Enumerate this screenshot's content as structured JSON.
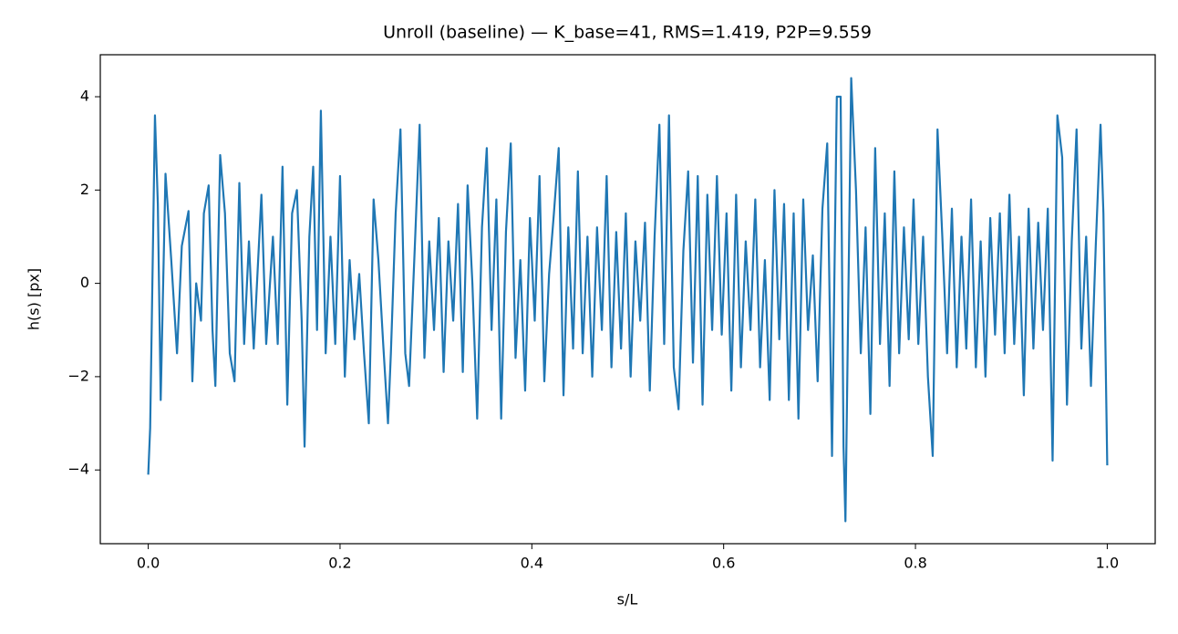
{
  "chart_data": {
    "type": "line",
    "title": "Unroll (baseline) — K_base=41, RMS=1.419, P2P=9.559",
    "x_label": "s/L",
    "y_label": "h(s) [px]",
    "xlim": [
      -0.05,
      1.05
    ],
    "ylim": [
      -5.58,
      4.9
    ],
    "xticks": [
      {
        "value": 0,
        "label": "0.0"
      },
      0.2,
      0.4,
      0.6,
      0.8,
      {
        "value": 1,
        "label": "1.0"
      }
    ],
    "yticks": [
      {
        "value": -4,
        "label": "−4"
      },
      {
        "value": -2,
        "label": "−2"
      },
      0,
      2,
      4
    ],
    "series": [
      {
        "color": "#1f77b4",
        "x": [
          0,
          0.002,
          0.007,
          0.01,
          0.013,
          0.018,
          0.024,
          0.03,
          0.035,
          0.042,
          0.046,
          0.05,
          0.055,
          0.058,
          0.063,
          0.067,
          0.07,
          0.075,
          0.08,
          0.085,
          0.09,
          0.095,
          0.1,
          0.105,
          0.11,
          0.118,
          0.123,
          0.13,
          0.135,
          0.14,
          0.145,
          0.15,
          0.155,
          0.16,
          0.163,
          0.168,
          0.172,
          0.176,
          0.18,
          0.185,
          0.19,
          0.195,
          0.2,
          0.205,
          0.21,
          0.215,
          0.22,
          0.225,
          0.23,
          0.235,
          0.24,
          0.245,
          0.25,
          0.253,
          0.258,
          0.263,
          0.268,
          0.272,
          0.278,
          0.283,
          0.288,
          0.293,
          0.298,
          0.303,
          0.308,
          0.313,
          0.318,
          0.323,
          0.328,
          0.333,
          0.338,
          0.343,
          0.348,
          0.353,
          0.358,
          0.363,
          0.368,
          0.373,
          0.378,
          0.383,
          0.388,
          0.393,
          0.398,
          0.403,
          0.408,
          0.413,
          0.418,
          0.423,
          0.428,
          0.433,
          0.438,
          0.443,
          0.448,
          0.453,
          0.458,
          0.463,
          0.468,
          0.473,
          0.478,
          0.483,
          0.488,
          0.493,
          0.498,
          0.503,
          0.508,
          0.513,
          0.518,
          0.523,
          0.528,
          0.533,
          0.538,
          0.543,
          0.548,
          0.553,
          0.558,
          0.563,
          0.568,
          0.573,
          0.578,
          0.583,
          0.588,
          0.593,
          0.598,
          0.603,
          0.608,
          0.613,
          0.618,
          0.623,
          0.628,
          0.633,
          0.638,
          0.643,
          0.648,
          0.653,
          0.658,
          0.663,
          0.668,
          0.673,
          0.678,
          0.683,
          0.688,
          0.693,
          0.698,
          0.703,
          0.708,
          0.713,
          0.718,
          0.722,
          0.725,
          0.727,
          0.733,
          0.738,
          0.743,
          0.748,
          0.753,
          0.758,
          0.763,
          0.768,
          0.773,
          0.778,
          0.783,
          0.788,
          0.793,
          0.798,
          0.803,
          0.808,
          0.813,
          0.818,
          0.823,
          0.828,
          0.833,
          0.838,
          0.843,
          0.848,
          0.853,
          0.858,
          0.863,
          0.868,
          0.873,
          0.878,
          0.883,
          0.888,
          0.893,
          0.898,
          0.903,
          0.908,
          0.913,
          0.918,
          0.923,
          0.928,
          0.933,
          0.938,
          0.943,
          0.948,
          0.953,
          0.958,
          0.963,
          0.968,
          0.973,
          0.978,
          0.983,
          0.988,
          0.993,
          0.996,
          1
        ],
        "values": [
          -4.1,
          -3.1,
          3.6,
          1.7,
          -2.5,
          2.35,
          0.5,
          -1.5,
          0.8,
          1.55,
          -2.1,
          0,
          -0.8,
          1.5,
          2.1,
          -1,
          -2.2,
          2.75,
          1.5,
          -1.5,
          -2.1,
          2.15,
          -1.3,
          0.9,
          -1.4,
          1.9,
          -1.3,
          1,
          -1.3,
          2.5,
          -2.6,
          1.5,
          2,
          -0.8,
          -3.5,
          1,
          2.5,
          -1,
          3.7,
          -1.5,
          1,
          -1.3,
          2.3,
          -2,
          0.5,
          -1.2,
          0.2,
          -1.5,
          -3,
          1.8,
          0.5,
          -1.3,
          -3,
          -1.5,
          1.5,
          3.3,
          -1.5,
          -2.2,
          0.8,
          3.4,
          -1.6,
          0.9,
          -1,
          1.4,
          -1.9,
          0.9,
          -0.8,
          1.7,
          -1.9,
          2.1,
          0,
          -2.9,
          1.2,
          2.9,
          -1,
          1.8,
          -2.9,
          1.1,
          3,
          -1.6,
          0.5,
          -2.3,
          1.4,
          -0.8,
          2.3,
          -2.1,
          0.2,
          1.5,
          2.9,
          -2.4,
          1.2,
          -1.4,
          2.4,
          -1.5,
          1,
          -2,
          1.2,
          -1,
          2.3,
          -1.8,
          1.1,
          -1.4,
          1.5,
          -2,
          0.9,
          -0.8,
          1.3,
          -2.3,
          1,
          3.4,
          -1.3,
          3.6,
          -1.8,
          -2.7,
          0.7,
          2.4,
          -1.7,
          2.3,
          -2.6,
          1.9,
          -1,
          2.3,
          -1.1,
          1.5,
          -2.3,
          1.9,
          -1.8,
          0.9,
          -1,
          1.8,
          -1.8,
          0.5,
          -2.5,
          2,
          -1.2,
          1.7,
          -2.5,
          1.5,
          -2.9,
          1.8,
          -1,
          0.6,
          -2.1,
          1.6,
          3,
          -3.7,
          4,
          4,
          -3.5,
          -5.1,
          4.4,
          2,
          -1.5,
          1.2,
          -2.8,
          2.9,
          -1.3,
          1.5,
          -2.2,
          2.4,
          -1.5,
          1.2,
          -1.2,
          1.8,
          -1.3,
          1,
          -2,
          -3.7,
          3.3,
          1,
          -1.5,
          1.6,
          -1.8,
          1,
          -1.4,
          1.8,
          -1.8,
          0.9,
          -2,
          1.4,
          -1.1,
          1.5,
          -1.5,
          1.9,
          -1.3,
          1,
          -2.4,
          1.6,
          -1.4,
          1.3,
          -1,
          1.6,
          -3.8,
          3.6,
          2.7,
          -2.6,
          0.9,
          3.3,
          -1.4,
          1,
          -2.2,
          0.8,
          3.4,
          1.5,
          -3.9
        ]
      }
    ]
  }
}
